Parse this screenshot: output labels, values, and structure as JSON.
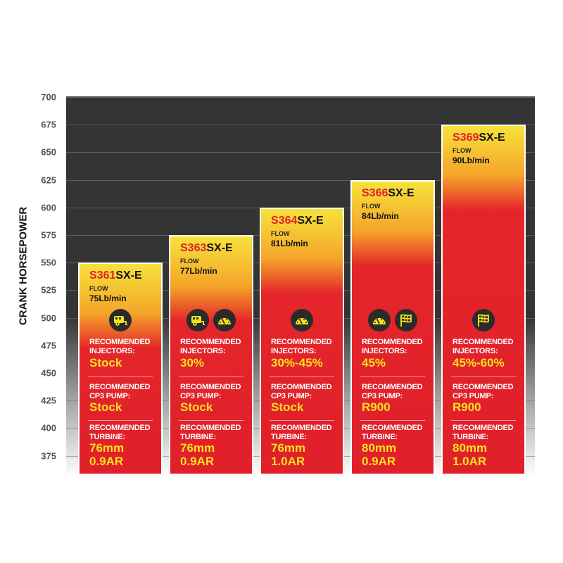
{
  "chart_data": {
    "type": "bar",
    "ylabel": "CRANK HORSEPOWER",
    "ylim": [
      375,
      700
    ],
    "yticks": [
      700,
      675,
      650,
      625,
      600,
      575,
      550,
      525,
      500,
      475,
      450,
      425,
      400,
      375
    ],
    "grid": true,
    "colors": {
      "bar_top": "#f6e23b",
      "bar_bottom": "#e01f2a",
      "name_prefix": "#e0202a",
      "value_text": "#f8e21f",
      "icon": "#f2e41c"
    },
    "labels": {
      "flow": "FLOW",
      "injectors": [
        "RECOMMENDED",
        "INJECTORS:"
      ],
      "pump": [
        "RECOMMENDED",
        "CP3 PUMP:"
      ],
      "turbine": [
        "RECOMMENDED",
        "TURBINE:"
      ]
    },
    "categories": [
      "S361SX-E",
      "S363SX-E",
      "S364SX-E",
      "S366SX-E",
      "S369SX-E"
    ],
    "bars": [
      {
        "prefix": "S361",
        "suffix": "SX-E",
        "value": 550,
        "flow": "75Lb/min",
        "icons": [
          "trailer-icon"
        ],
        "injectors": "Stock",
        "pump": "Stock",
        "turbine": [
          "76mm",
          "0.9AR"
        ]
      },
      {
        "prefix": "S363",
        "suffix": "SX-E",
        "value": 575,
        "flow": "77Lb/min",
        "icons": [
          "trailer-icon",
          "gauge-icon"
        ],
        "injectors": "30%",
        "pump": "Stock",
        "turbine": [
          "76mm",
          "0.9AR"
        ]
      },
      {
        "prefix": "S364",
        "suffix": "SX-E",
        "value": 600,
        "flow": "81Lb/min",
        "icons": [
          "gauge-icon"
        ],
        "injectors": "30%-45%",
        "pump": "Stock",
        "turbine": [
          "76mm",
          "1.0AR"
        ]
      },
      {
        "prefix": "S366",
        "suffix": "SX-E",
        "value": 625,
        "flow": "84Lb/min",
        "icons": [
          "gauge-icon",
          "checkered-flag-icon"
        ],
        "injectors": "45%",
        "pump": "R900",
        "turbine": [
          "80mm",
          "0.9AR"
        ]
      },
      {
        "prefix": "S369",
        "suffix": "SX-E",
        "value": 675,
        "flow": "90Lb/min",
        "icons": [
          "checkered-flag-icon"
        ],
        "injectors": "45%-60%",
        "pump": "R900",
        "turbine": [
          "80mm",
          "1.0AR"
        ]
      }
    ]
  }
}
